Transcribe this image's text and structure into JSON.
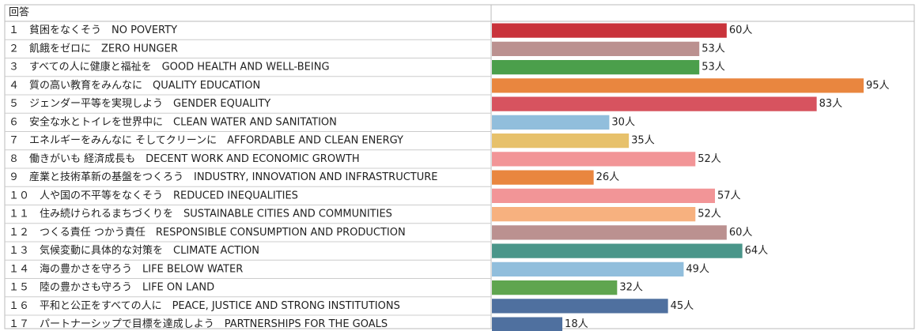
{
  "chart_data": {
    "type": "bar",
    "orientation": "horizontal",
    "header": "回答",
    "categories": [
      "１　貧困をなくそう　NO POVERTY",
      "２　飢餓をゼロに　ZERO HUNGER",
      "３　すべての人に健康と福祉を　GOOD HEALTH AND WELL-BEING",
      "４　質の高い教育をみんなに　QUALITY EDUCATION",
      "５　ジェンダー平等を実現しよう　GENDER EQUALITY",
      "６　安全な水とトイレを世界中に　CLEAN WATER AND SANITATION",
      "７　エネルギーをみんなに そしてクリーンに　AFFORDABLE AND CLEAN ENERGY",
      "８　働きがいも 経済成長も　DECENT WORK AND ECONOMIC GROWTH",
      "９　産業と技術革新の基盤をつくろう　INDUSTRY, INNOVATION AND INFRASTRUCTURE",
      "１０　人や国の不平等をなくそう　REDUCED INEQUALITIES",
      "１１　住み続けられるまちづくりを　SUSTAINABLE CITIES AND COMMUNITIES",
      "１２　つくる責任 つかう責任　RESPONSIBLE CONSUMPTION AND PRODUCTION",
      "１３　気候変動に具体的な対策を　CLIMATE ACTION",
      "１４　海の豊かさを守ろう　LIFE BELOW WATER",
      "１５　陸の豊かさも守ろう　LIFE ON LAND",
      "１６　平和と公正をすべての人に　PEACE, JUSTICE AND STRONG INSTITUTIONS",
      "１７　パートナーシップで目標を達成しよう　PARTNERSHIPS FOR THE GOALS"
    ],
    "values": [
      60,
      53,
      53,
      95,
      83,
      30,
      35,
      52,
      26,
      57,
      52,
      60,
      64,
      49,
      32,
      45,
      18
    ],
    "value_labels": [
      "60人",
      "53人",
      "53人",
      "95人",
      "83人",
      "30人",
      "35人",
      "52人",
      "26人",
      "57人",
      "52人",
      "60人",
      "64人",
      "49人",
      "32人",
      "45人",
      "18人"
    ],
    "colors": [
      "#c9333b",
      "#bb9190",
      "#4b9f4b",
      "#e9863f",
      "#d7535f",
      "#91bedc",
      "#e7c16b",
      "#f29597",
      "#e9863f",
      "#f29597",
      "#f7b17f",
      "#bb9190",
      "#4a968a",
      "#91bedc",
      "#5fa54f",
      "#4f709f",
      "#4f709f"
    ]
  }
}
